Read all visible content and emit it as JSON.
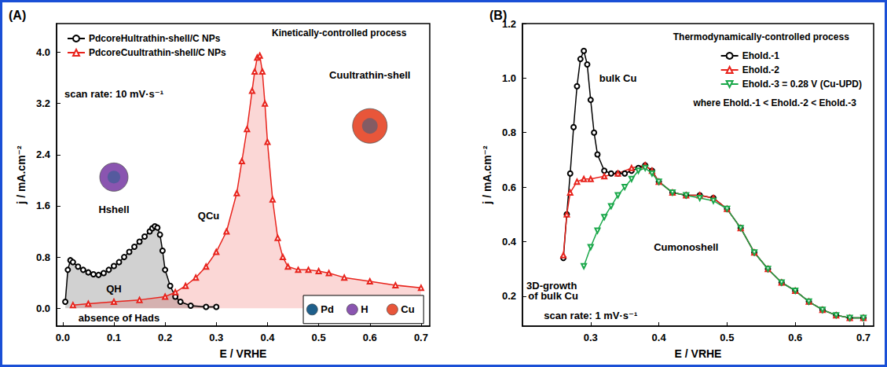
{
  "chart_data": [
    {
      "type": "area",
      "panel_label": "(A)",
      "x_label": "E / VRHE",
      "y_label": "j / mA.cm⁻²",
      "xlim": [
        -0.012,
        0.717
      ],
      "ylim": [
        -0.28,
        4.45
      ],
      "xticks": [
        {
          "value": 0,
          "label": "0.0"
        },
        0.1,
        0.2,
        0.3,
        0.4,
        0.5,
        0.6,
        0.7
      ],
      "yticks": [
        {
          "value": 0,
          "label": "0.0"
        },
        0.8,
        1.6,
        2.4,
        3.2,
        {
          "value": 4,
          "label": "4.0"
        }
      ],
      "grid": false,
      "legend": "top-left",
      "series": [
        {
          "name": "PdcoreHultrathin-shell/C NPs",
          "color": "#000000",
          "marker": "open-circle",
          "x": [
            0.005,
            0.01,
            0.015,
            0.02,
            0.03,
            0.04,
            0.05,
            0.06,
            0.07,
            0.08,
            0.09,
            0.1,
            0.11,
            0.12,
            0.13,
            0.14,
            0.15,
            0.16,
            0.17,
            0.175,
            0.18,
            0.185,
            0.19,
            0.195,
            0.2,
            0.21,
            0.22,
            0.23,
            0.25,
            0.28,
            0.3
          ],
          "values": [
            0.1,
            0.6,
            0.75,
            0.72,
            0.65,
            0.6,
            0.56,
            0.53,
            0.52,
            0.55,
            0.6,
            0.66,
            0.72,
            0.8,
            0.88,
            0.96,
            1.04,
            1.12,
            1.2,
            1.25,
            1.28,
            1.26,
            1.15,
            0.9,
            0.6,
            0.35,
            0.18,
            0.1,
            0.04,
            0.02,
            0.02
          ]
        },
        {
          "name": "PdcoreCuultrathin-shell/C NPs",
          "color": "#e8231c",
          "marker": "open-triangle",
          "x": [
            0.02,
            0.05,
            0.1,
            0.15,
            0.2,
            0.22,
            0.24,
            0.26,
            0.28,
            0.3,
            0.32,
            0.34,
            0.35,
            0.36,
            0.37,
            0.375,
            0.38,
            0.385,
            0.39,
            0.395,
            0.4,
            0.41,
            0.42,
            0.43,
            0.44,
            0.46,
            0.48,
            0.5,
            0.52,
            0.55,
            0.6,
            0.65,
            0.7
          ],
          "values": [
            0.05,
            0.07,
            0.1,
            0.13,
            0.18,
            0.25,
            0.35,
            0.48,
            0.65,
            0.88,
            1.2,
            1.8,
            2.3,
            2.8,
            3.4,
            3.7,
            3.92,
            3.95,
            3.7,
            3.2,
            2.6,
            1.7,
            1.1,
            0.8,
            0.65,
            0.6,
            0.6,
            0.58,
            0.55,
            0.48,
            0.42,
            0.36,
            0.32
          ]
        }
      ],
      "annotations": [
        {
          "text": "Kinetically-controlled process",
          "x": 0.54,
          "y": 4.3
        },
        {
          "text": "scan rate: 10 mV·s⁻¹",
          "x": 0.1,
          "y": 3.35
        },
        {
          "text": "Hshell",
          "x": 0.1,
          "y": 1.55
        },
        {
          "text": "QH",
          "x": 0.1,
          "y": 0.3
        },
        {
          "text": "QCu",
          "x": 0.285,
          "y": 1.45
        },
        {
          "text": "Cuultrathin-shell",
          "x": 0.6,
          "y": 3.65
        },
        {
          "text": "absence of Hads",
          "x": 0.11,
          "y": -0.15
        }
      ],
      "species_legend": [
        {
          "label": "Pd",
          "color": "#1f5f8b"
        },
        {
          "label": "H",
          "color": "#8a55b0"
        },
        {
          "label": "Cu",
          "color": "#e8563a"
        }
      ]
    },
    {
      "type": "line",
      "panel_label": "(B)",
      "x_label": "E / VRHE",
      "y_label": "j / mA.cm⁻²",
      "xlim": [
        0.2,
        0.715
      ],
      "ylim": [
        0.09,
        1.2
      ],
      "xticks": [
        0.3,
        0.4,
        0.5,
        0.6,
        0.7
      ],
      "yticks": [
        0.2,
        0.4,
        0.6,
        0.8,
        {
          "value": 1,
          "label": "1.0"
        },
        1.2
      ],
      "grid": false,
      "legend": "top-right",
      "series": [
        {
          "name": "Ehold.-1",
          "color": "#000000",
          "marker": "open-circle",
          "x": [
            0.26,
            0.265,
            0.27,
            0.275,
            0.28,
            0.285,
            0.29,
            0.295,
            0.3,
            0.305,
            0.31,
            0.32,
            0.33,
            0.34,
            0.35,
            0.36,
            0.37,
            0.38,
            0.39,
            0.4,
            0.42,
            0.44,
            0.46,
            0.48,
            0.5,
            0.52,
            0.54,
            0.56,
            0.58,
            0.6,
            0.62,
            0.64,
            0.66,
            0.68,
            0.7
          ],
          "values": [
            0.34,
            0.5,
            0.65,
            0.82,
            0.97,
            1.07,
            1.1,
            1.05,
            0.92,
            0.8,
            0.72,
            0.66,
            0.65,
            0.65,
            0.65,
            0.66,
            0.67,
            0.68,
            0.66,
            0.62,
            0.58,
            0.57,
            0.57,
            0.56,
            0.52,
            0.45,
            0.36,
            0.3,
            0.25,
            0.22,
            0.18,
            0.15,
            0.13,
            0.12,
            0.12
          ]
        },
        {
          "name": "Ehold.-2",
          "color": "#e8231c",
          "marker": "open-triangle",
          "x": [
            0.26,
            0.265,
            0.27,
            0.28,
            0.29,
            0.3,
            0.32,
            0.34,
            0.36,
            0.38,
            0.39,
            0.4,
            0.42,
            0.44,
            0.46,
            0.48,
            0.5,
            0.52,
            0.54,
            0.56,
            0.58,
            0.6,
            0.62,
            0.64,
            0.66,
            0.68,
            0.7
          ],
          "values": [
            0.35,
            0.5,
            0.58,
            0.62,
            0.63,
            0.63,
            0.64,
            0.65,
            0.67,
            0.68,
            0.66,
            0.62,
            0.58,
            0.57,
            0.57,
            0.56,
            0.52,
            0.45,
            0.36,
            0.3,
            0.25,
            0.22,
            0.18,
            0.15,
            0.13,
            0.12,
            0.12
          ]
        },
        {
          "name": "Ehold.-3 = 0.28 V (Cu-UPD)",
          "color": "#1aa84a",
          "marker": "open-triangle-down",
          "x": [
            0.29,
            0.3,
            0.31,
            0.32,
            0.33,
            0.34,
            0.35,
            0.36,
            0.37,
            0.38,
            0.39,
            0.4,
            0.42,
            0.44,
            0.46,
            0.48,
            0.5,
            0.52,
            0.54,
            0.56,
            0.58,
            0.6,
            0.62,
            0.64,
            0.66,
            0.68,
            0.7
          ],
          "values": [
            0.31,
            0.38,
            0.44,
            0.49,
            0.53,
            0.57,
            0.6,
            0.63,
            0.66,
            0.67,
            0.65,
            0.62,
            0.58,
            0.57,
            0.56,
            0.55,
            0.52,
            0.45,
            0.36,
            0.3,
            0.25,
            0.22,
            0.18,
            0.15,
            0.13,
            0.12,
            0.12
          ]
        }
      ],
      "annotations": [
        {
          "text": "Thermodynamically-controlled process",
          "x": 0.55,
          "y": 1.15
        },
        {
          "text": "where Ehold.-1 < Ehold.-2 < Ehold.-3",
          "x": 0.57,
          "y": 0.91
        },
        {
          "text": "bulk Cu",
          "x": 0.34,
          "y": 1.0
        },
        {
          "text": "3D-growth of bulk Cu",
          "x": 0.245,
          "y": 0.22
        },
        {
          "text": "Cumonoshell",
          "x": 0.44,
          "y": 0.38
        },
        {
          "text": "scan rate: 1 mV·s⁻¹",
          "x": 0.3,
          "y": 0.13
        }
      ]
    }
  ]
}
